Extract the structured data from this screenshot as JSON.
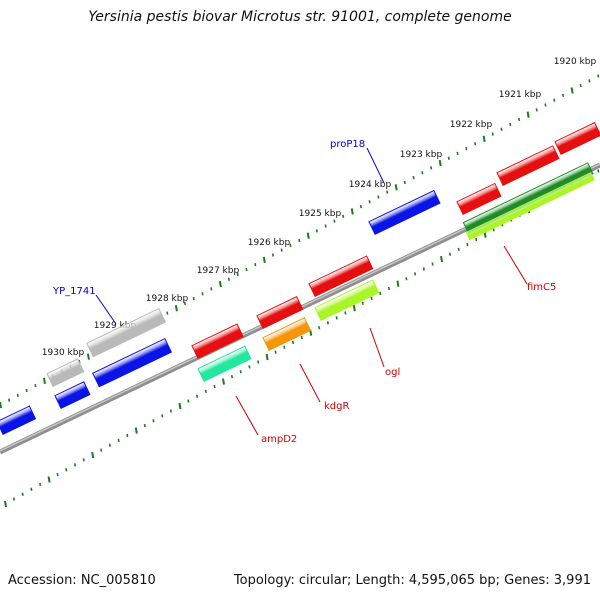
{
  "title": "Yersinia pestis biovar Microtus str. 91001, complete genome",
  "footer": {
    "accession": "Accession: NC_005810",
    "summary": "Topology: circular; Length: 4,595,065 bp; Genes: 3,991"
  },
  "colors": {
    "backbone": "#7a7a7a",
    "ruler_ticks": "#1e7a1e",
    "tick_label": "#111111",
    "blue_feature": "#0a14e6",
    "blue_label": "#0000cc",
    "red_label": "#cc0000",
    "leader_blue": "#0000cc",
    "leader_red": "#cc0000"
  },
  "ruler_labels": [
    "1920 kbp",
    "1921 kbp",
    "1922 kbp",
    "1923 kbp",
    "1924 kbp",
    "1925 kbp",
    "1926 kbp",
    "1927 kbp",
    "1928 kbp",
    "1929 kbp",
    "1930 kbp"
  ],
  "gene_labels": [
    {
      "text": "proP18",
      "color_key": "blue_label"
    },
    {
      "text": "YP_1741",
      "color_key": "blue_label"
    },
    {
      "text": "fimC5",
      "color_key": "red_label"
    },
    {
      "text": "ogl",
      "color_key": "red_label"
    },
    {
      "text": "kdgR",
      "color_key": "red_label"
    },
    {
      "text": "ampD2",
      "color_key": "red_label"
    }
  ],
  "features": [
    {
      "name": "blue-gene-far-left",
      "color": "#0a14e6"
    },
    {
      "name": "blue-gene-left-small",
      "color": "#0a14e6"
    },
    {
      "name": "grey-gene-small",
      "color": "#b9b9b9"
    },
    {
      "name": "grey-gene-long",
      "color": "#b9b9b9"
    },
    {
      "name": "blue-gene-left-long",
      "color": "#0a14e6"
    },
    {
      "name": "red-gene-ampd2-top",
      "color": "#e60f0f"
    },
    {
      "name": "teal-gene-ampd2",
      "color": "#23e6a0"
    },
    {
      "name": "red-gene-kdgr-top",
      "color": "#e60f0f"
    },
    {
      "name": "orange-gene-kdgr",
      "color": "#f5960a"
    },
    {
      "name": "red-gene-ogl-top",
      "color": "#e60f0f"
    },
    {
      "name": "lime-gene-ogl",
      "color": "#aaf528"
    },
    {
      "name": "blue-gene-prop18",
      "color": "#0a14e6"
    },
    {
      "name": "red-gene-fimc5-1",
      "color": "#e60f0f"
    },
    {
      "name": "red-gene-fimc5-2",
      "color": "#e60f0f"
    },
    {
      "name": "red-gene-fimc5-3",
      "color": "#e60f0f"
    },
    {
      "name": "green-gene-long",
      "color": "#1e8c28"
    },
    {
      "name": "lime-gene-long",
      "color": "#aaf528"
    }
  ]
}
